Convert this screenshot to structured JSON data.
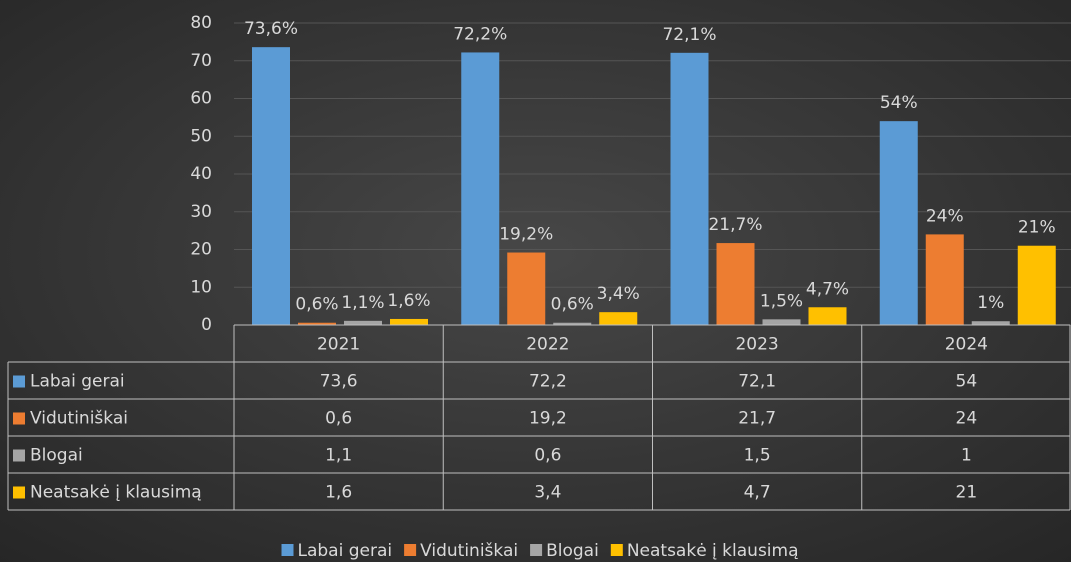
{
  "chart_data": {
    "type": "bar",
    "categories": [
      "2021",
      "2022",
      "2023",
      "2024"
    ],
    "series": [
      {
        "name": "Labai gerai",
        "color": "#5b9bd5",
        "values": [
          73.6,
          72.2,
          72.1,
          54
        ],
        "value_labels": [
          "73,6%",
          "72,2%",
          "72,1%",
          "54%"
        ],
        "table_labels": [
          "73,6",
          "72,2",
          "72,1",
          "54"
        ]
      },
      {
        "name": "Vidutiniškai",
        "color": "#ed7d31",
        "values": [
          0.6,
          19.2,
          21.7,
          24
        ],
        "value_labels": [
          "0,6%",
          "19,2%",
          "21,7%",
          "24%"
        ],
        "table_labels": [
          "0,6",
          "19,2",
          "21,7",
          "24"
        ]
      },
      {
        "name": "Blogai",
        "color": "#a5a5a5",
        "values": [
          1.1,
          0.6,
          1.5,
          1
        ],
        "value_labels": [
          "1,1%",
          "0,6%",
          "1,5%",
          "1%"
        ],
        "table_labels": [
          "1,1",
          "0,6",
          "1,5",
          "1"
        ]
      },
      {
        "name": "Neatsakė į klausimą",
        "color": "#ffc000",
        "values": [
          1.6,
          3.4,
          4.7,
          21
        ],
        "value_labels": [
          "1,6%",
          "3,4%",
          "4,7%",
          "21%"
        ],
        "table_labels": [
          "1,6",
          "3,4",
          "4,7",
          "21"
        ]
      }
    ],
    "ylim": [
      0,
      80
    ],
    "yticks": [
      0,
      10,
      20,
      30,
      40,
      50,
      60,
      70,
      80
    ],
    "grid": true,
    "legend": "bottom"
  }
}
